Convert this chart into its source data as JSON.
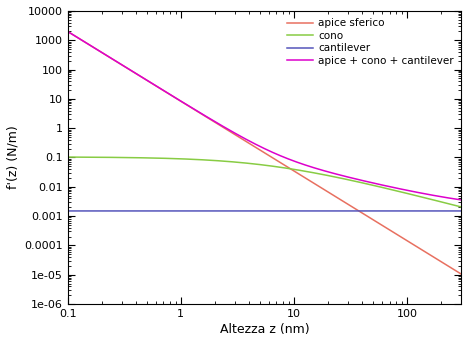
{
  "xlabel": "Altezza z (nm)",
  "ylabel": "f'(z) (N/m)",
  "xlim": [
    0.1,
    300
  ],
  "ylim": [
    1e-06,
    10000.0
  ],
  "legend_labels": [
    "apice sferico",
    "cono",
    "cantilever",
    "apice + cono + cantilever"
  ],
  "colors": {
    "apice": "#e87060",
    "cono": "#88cc44",
    "cantilever": "#5555bb",
    "total": "#dd00cc"
  },
  "k_cant": 0.0015,
  "background": "#ffffff",
  "ytick_labels": [
    "1e-06",
    "1e-05",
    "0.0001",
    "0.001",
    "0.01",
    "0.1",
    "1",
    "10",
    "100",
    "1000",
    "10000"
  ],
  "xtick_labels": [
    "0.1",
    "1",
    "10",
    "100"
  ]
}
